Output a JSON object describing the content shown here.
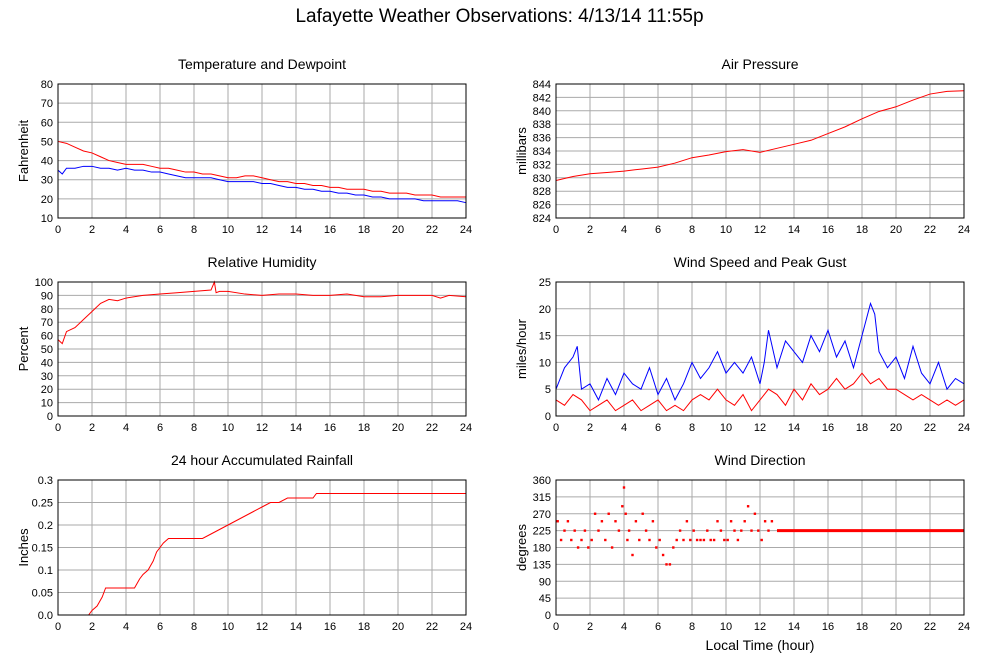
{
  "title": "Lafayette Weather Observations: 4/13/14 11:55p",
  "x_axis_label": "Local Time (hour)",
  "colors": {
    "red": "#ff0000",
    "blue": "#0000ff",
    "grid": "#aaaaaa",
    "frame": "#000000"
  },
  "chart_data": [
    {
      "id": "temp",
      "type": "line",
      "title": "Temperature and Dewpoint",
      "ylabel": "Fahrenheit",
      "xlim": [
        0,
        24
      ],
      "ylim": [
        10,
        80
      ],
      "xticks": [
        0,
        2,
        4,
        6,
        8,
        10,
        12,
        14,
        16,
        18,
        20,
        22,
        24
      ],
      "yticks": [
        10,
        20,
        30,
        40,
        50,
        60,
        70,
        80
      ],
      "series": [
        {
          "color": "#ff0000",
          "x": [
            0,
            0.5,
            1,
            1.5,
            2,
            2.5,
            3,
            3.5,
            4,
            4.5,
            5,
            5.5,
            6,
            6.5,
            7,
            7.5,
            8,
            8.5,
            9,
            9.5,
            10,
            10.5,
            11,
            11.5,
            12,
            12.5,
            13,
            13.5,
            14,
            14.5,
            15,
            15.5,
            16,
            16.5,
            17,
            17.5,
            18,
            18.5,
            19,
            19.5,
            20,
            20.5,
            21,
            21.5,
            22,
            22.5,
            23,
            23.5,
            24
          ],
          "values": [
            50,
            49,
            47,
            45,
            44,
            42,
            40,
            39,
            38,
            38,
            38,
            37,
            36,
            36,
            35,
            34,
            34,
            33,
            33,
            32,
            31,
            31,
            32,
            32,
            31,
            30,
            29,
            29,
            28,
            28,
            27,
            27,
            26,
            26,
            25,
            25,
            25,
            24,
            24,
            23,
            23,
            23,
            22,
            22,
            22,
            21,
            21,
            21,
            21
          ]
        },
        {
          "color": "#0000ff",
          "x": [
            0,
            0.25,
            0.5,
            1,
            1.5,
            2,
            2.5,
            3,
            3.5,
            4,
            4.5,
            5,
            5.5,
            6,
            6.5,
            7,
            7.5,
            8,
            8.5,
            9,
            9.5,
            10,
            10.5,
            11,
            11.5,
            12,
            12.5,
            13,
            13.5,
            14,
            14.5,
            15,
            15.5,
            16,
            16.5,
            17,
            17.5,
            18,
            18.5,
            19,
            19.5,
            20,
            20.5,
            21,
            21.5,
            22,
            22.5,
            23,
            23.5,
            24
          ],
          "values": [
            35,
            33,
            36,
            36,
            37,
            37,
            36,
            36,
            35,
            36,
            35,
            35,
            34,
            34,
            33,
            32,
            31,
            31,
            31,
            31,
            30,
            29,
            29,
            29,
            29,
            28,
            28,
            27,
            26,
            26,
            25,
            25,
            24,
            24,
            23,
            23,
            22,
            22,
            21,
            21,
            20,
            20,
            20,
            20,
            19,
            19,
            19,
            19,
            19,
            18
          ]
        }
      ]
    },
    {
      "id": "pressure",
      "type": "line",
      "title": "Air Pressure",
      "ylabel": "millibars",
      "xlim": [
        0,
        24
      ],
      "ylim": [
        824,
        844
      ],
      "xticks": [
        0,
        2,
        4,
        6,
        8,
        10,
        12,
        14,
        16,
        18,
        20,
        22,
        24
      ],
      "yticks": [
        824,
        826,
        828,
        830,
        832,
        834,
        836,
        838,
        840,
        842,
        844
      ],
      "series": [
        {
          "color": "#ff0000",
          "x": [
            0,
            1,
            2,
            3,
            4,
            5,
            6,
            7,
            8,
            9,
            10,
            11,
            12,
            13,
            14,
            15,
            16,
            17,
            18,
            19,
            20,
            21,
            22,
            23,
            24
          ],
          "values": [
            829.6,
            830.2,
            830.6,
            830.8,
            831.0,
            831.3,
            831.6,
            832.2,
            833.0,
            833.4,
            833.9,
            834.2,
            833.8,
            834.4,
            835.0,
            835.6,
            836.6,
            837.6,
            838.8,
            839.9,
            840.6,
            841.6,
            842.5,
            842.9,
            843.0
          ]
        }
      ]
    },
    {
      "id": "humidity",
      "type": "line",
      "title": "Relative Humidity",
      "ylabel": "Percent",
      "xlim": [
        0,
        24
      ],
      "ylim": [
        0,
        100
      ],
      "xticks": [
        0,
        2,
        4,
        6,
        8,
        10,
        12,
        14,
        16,
        18,
        20,
        22,
        24
      ],
      "yticks": [
        0,
        10,
        20,
        30,
        40,
        50,
        60,
        70,
        80,
        90,
        100
      ],
      "series": [
        {
          "color": "#ff0000",
          "x": [
            0,
            0.25,
            0.5,
            1,
            1.5,
            2,
            2.5,
            3,
            3.5,
            4,
            5,
            6,
            7,
            8,
            9,
            9.2,
            9.3,
            9.5,
            10,
            11,
            12,
            13,
            14,
            15,
            16,
            17,
            18,
            19,
            20,
            21,
            22,
            22.5,
            23,
            24
          ],
          "values": [
            57,
            54,
            63,
            66,
            72,
            78,
            84,
            87,
            86,
            88,
            90,
            91,
            92,
            93,
            94,
            100,
            92,
            93,
            93,
            91,
            90,
            91,
            91,
            90,
            90,
            91,
            89,
            89,
            90,
            90,
            90,
            88,
            90,
            89
          ]
        }
      ]
    },
    {
      "id": "wind",
      "type": "line",
      "title": "Wind Speed and Peak Gust",
      "ylabel": "miles/hour",
      "xlim": [
        0,
        24
      ],
      "ylim": [
        0,
        25
      ],
      "xticks": [
        0,
        2,
        4,
        6,
        8,
        10,
        12,
        14,
        16,
        18,
        20,
        22,
        24
      ],
      "yticks": [
        0,
        5,
        10,
        15,
        20,
        25
      ],
      "series": [
        {
          "color": "#0000ff",
          "x": [
            0,
            0.5,
            1,
            1.25,
            1.5,
            2,
            2.5,
            3,
            3.5,
            4,
            4.5,
            5,
            5.5,
            6,
            6.5,
            7,
            7.5,
            8,
            8.5,
            9,
            9.5,
            10,
            10.5,
            11,
            11.5,
            12,
            12.25,
            12.5,
            13,
            13.5,
            14,
            14.5,
            15,
            15.5,
            16,
            16.5,
            17,
            17.5,
            18,
            18.5,
            18.75,
            19,
            19.5,
            20,
            20.5,
            21,
            21.5,
            22,
            22.5,
            23,
            23.5,
            24
          ],
          "values": [
            5,
            9,
            11,
            13,
            5,
            6,
            3,
            7,
            4,
            8,
            6,
            5,
            9,
            4,
            7,
            3,
            6,
            10,
            7,
            9,
            12,
            8,
            10,
            8,
            11,
            6,
            10,
            16,
            9,
            14,
            12,
            10,
            15,
            12,
            16,
            11,
            14,
            9,
            15,
            21,
            19,
            12,
            9,
            11,
            7,
            13,
            8,
            6,
            10,
            5,
            7,
            6
          ]
        },
        {
          "color": "#ff0000",
          "x": [
            0,
            0.5,
            1,
            1.5,
            2,
            2.5,
            3,
            3.5,
            4,
            4.5,
            5,
            5.5,
            6,
            6.5,
            7,
            7.5,
            8,
            8.5,
            9,
            9.5,
            10,
            10.5,
            11,
            11.5,
            12,
            12.5,
            13,
            13.5,
            14,
            14.5,
            15,
            15.5,
            16,
            16.5,
            17,
            17.5,
            18,
            18.5,
            19,
            19.5,
            20,
            20.5,
            21,
            21.5,
            22,
            22.5,
            23,
            23.5,
            24
          ],
          "values": [
            3,
            2,
            4,
            3,
            1,
            2,
            3,
            1,
            2,
            3,
            1,
            2,
            3,
            1,
            2,
            1,
            3,
            4,
            3,
            5,
            3,
            2,
            4,
            1,
            3,
            5,
            4,
            2,
            5,
            3,
            6,
            4,
            5,
            7,
            5,
            6,
            8,
            6,
            7,
            5,
            5,
            4,
            3,
            4,
            3,
            2,
            3,
            2,
            3
          ]
        }
      ]
    },
    {
      "id": "rain",
      "type": "line",
      "title": "24 hour Accumulated Rainfall",
      "ylabel": "Inches",
      "xlim": [
        0,
        24
      ],
      "ylim": [
        0,
        0.3
      ],
      "xticks": [
        0,
        2,
        4,
        6,
        8,
        10,
        12,
        14,
        16,
        18,
        20,
        22,
        24
      ],
      "yticks": [
        0,
        0.05,
        0.1,
        0.15,
        0.2,
        0.25,
        0.3
      ],
      "ytick_labels": [
        "0.0",
        "0.05",
        "0.1",
        "0.15",
        "0.2",
        "0.25",
        "0.3"
      ],
      "series": [
        {
          "color": "#ff0000",
          "x": [
            0,
            1.8,
            2.0,
            2.3,
            2.6,
            2.8,
            4.5,
            4.8,
            5.0,
            5.3,
            5.6,
            5.8,
            6.0,
            6.2,
            6.5,
            8.5,
            9.0,
            9.5,
            10.0,
            10.5,
            11.0,
            11.5,
            12.0,
            12.5,
            13.0,
            13.5,
            14.0,
            15.0,
            15.2,
            24.0
          ],
          "values": [
            0,
            0,
            0.01,
            0.02,
            0.04,
            0.06,
            0.06,
            0.08,
            0.09,
            0.1,
            0.12,
            0.14,
            0.15,
            0.16,
            0.17,
            0.17,
            0.18,
            0.19,
            0.2,
            0.21,
            0.22,
            0.23,
            0.24,
            0.25,
            0.25,
            0.26,
            0.26,
            0.26,
            0.27,
            0.27
          ]
        }
      ]
    },
    {
      "id": "direction",
      "type": "scatter",
      "title": "Wind Direction",
      "ylabel": "degrees",
      "xlim": [
        0,
        24
      ],
      "ylim": [
        0,
        360
      ],
      "xticks": [
        0,
        2,
        4,
        6,
        8,
        10,
        12,
        14,
        16,
        18,
        20,
        22,
        24
      ],
      "yticks": [
        0,
        45,
        90,
        135,
        180,
        225,
        270,
        315,
        360
      ],
      "series": [
        {
          "color": "#ff0000",
          "x": [
            0.1,
            0.3,
            0.5,
            0.7,
            0.9,
            1.1,
            1.3,
            1.5,
            1.7,
            1.9,
            2.1,
            2.3,
            2.5,
            2.7,
            2.9,
            3.1,
            3.3,
            3.5,
            3.7,
            3.9,
            4.0,
            4.1,
            4.2,
            4.3,
            4.5,
            4.7,
            4.9,
            5.1,
            5.3,
            5.5,
            5.7,
            5.9,
            6.1,
            6.3,
            6.5,
            6.7,
            6.9,
            7.1,
            7.3,
            7.5,
            7.7,
            7.9,
            8.1,
            8.3,
            8.5,
            8.7,
            8.9,
            9.1,
            9.3,
            9.5,
            9.7,
            9.9,
            10.1,
            10.3,
            10.5,
            10.7,
            10.9,
            11.1,
            11.3,
            11.5,
            11.7,
            11.9,
            12.1,
            12.3,
            12.5,
            12.7
          ],
          "values": [
            250,
            200,
            225,
            250,
            200,
            225,
            180,
            200,
            225,
            180,
            200,
            270,
            225,
            250,
            200,
            270,
            180,
            250,
            225,
            290,
            340,
            270,
            200,
            225,
            160,
            250,
            200,
            270,
            225,
            200,
            250,
            180,
            200,
            160,
            135,
            135,
            180,
            200,
            225,
            200,
            250,
            200,
            225,
            200,
            200,
            200,
            225,
            200,
            200,
            250,
            225,
            200,
            200,
            250,
            225,
            200,
            225,
            250,
            290,
            225,
            270,
            225,
            200,
            250,
            225,
            250
          ]
        },
        {
          "color": "#ff0000",
          "line_from": 13,
          "line_to": 24,
          "value": 225
        }
      ]
    }
  ]
}
